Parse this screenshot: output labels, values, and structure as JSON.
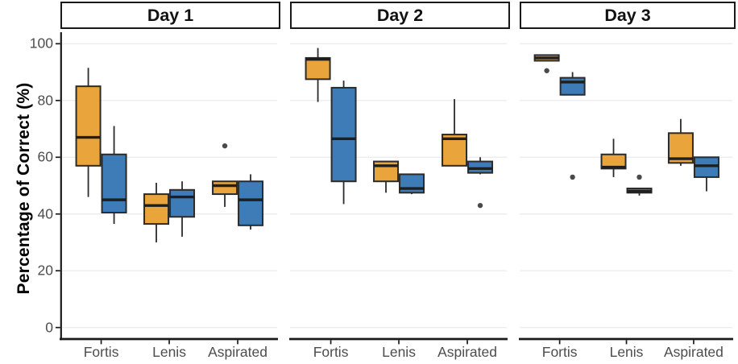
{
  "chart_data": {
    "type": "box",
    "title": "",
    "xlabel": "",
    "ylabel": "Percentage of Correct (%)",
    "ylim": [
      0,
      100
    ],
    "y_ticks": [
      0,
      20,
      40,
      60,
      80,
      100
    ],
    "grid": "horizontal-light",
    "legend_position": "none",
    "categories": [
      "Fortis",
      "Lenis",
      "Aspirated"
    ],
    "series": [
      {
        "id": "orange",
        "color": "#E9A43C"
      },
      {
        "id": "blue",
        "color": "#3E7CB7"
      }
    ],
    "style_colors": {
      "box_border": "#2b2b2b",
      "median": "#1f1f1f",
      "whisker": "#2b2b2b",
      "outlier": "#4a4a4a",
      "gridline": "#ededed",
      "axis_line": "#1a1a1a",
      "axis_text": "#4d4d4d",
      "strip_border": "#1a1a1a",
      "strip_fill": "#ffffff"
    },
    "facets": [
      {
        "label": "Day 1",
        "groups": [
          {
            "category": "Fortis",
            "series": "orange",
            "min": 46,
            "q1": 57,
            "median": 67,
            "q3": 85,
            "max": 91.5,
            "outliers": []
          },
          {
            "category": "Fortis",
            "series": "blue",
            "min": 36.5,
            "q1": 40.5,
            "median": 45,
            "q3": 61,
            "max": 71,
            "outliers": []
          },
          {
            "category": "Lenis",
            "series": "orange",
            "min": 30,
            "q1": 36.5,
            "median": 43,
            "q3": 47,
            "max": 51,
            "outliers": []
          },
          {
            "category": "Lenis",
            "series": "blue",
            "min": 32,
            "q1": 39,
            "median": 46,
            "q3": 48.5,
            "max": 51.5,
            "outliers": []
          },
          {
            "category": "Aspirated",
            "series": "orange",
            "min": 42.5,
            "q1": 47,
            "median": 50,
            "q3": 51.5,
            "max": 51.5,
            "outliers": [
              64
            ]
          },
          {
            "category": "Aspirated",
            "series": "blue",
            "min": 34.5,
            "q1": 36,
            "median": 45,
            "q3": 51.5,
            "max": 54,
            "outliers": []
          }
        ]
      },
      {
        "label": "Day 2",
        "groups": [
          {
            "category": "Fortis",
            "series": "orange",
            "min": 79.5,
            "q1": 87.5,
            "median": 94.5,
            "q3": 95,
            "max": 98.5,
            "outliers": []
          },
          {
            "category": "Fortis",
            "series": "blue",
            "min": 43.5,
            "q1": 51.5,
            "median": 66.5,
            "q3": 84.5,
            "max": 87,
            "outliers": []
          },
          {
            "category": "Lenis",
            "series": "orange",
            "min": 47.5,
            "q1": 51.5,
            "median": 57,
            "q3": 58.5,
            "max": 58.5,
            "outliers": []
          },
          {
            "category": "Lenis",
            "series": "blue",
            "min": 47,
            "q1": 47.5,
            "median": 49,
            "q3": 54,
            "max": 54,
            "outliers": []
          },
          {
            "category": "Aspirated",
            "series": "orange",
            "min": 57,
            "q1": 57,
            "median": 66.5,
            "q3": 68,
            "max": 80.5,
            "outliers": []
          },
          {
            "category": "Aspirated",
            "series": "blue",
            "min": 54,
            "q1": 54.5,
            "median": 56,
            "q3": 58.5,
            "max": 60,
            "outliers": [
              43
            ]
          }
        ]
      },
      {
        "label": "Day 3",
        "groups": [
          {
            "category": "Fortis",
            "series": "orange",
            "min": 94,
            "q1": 94,
            "median": 95,
            "q3": 96,
            "max": 96,
            "outliers": [
              90.5
            ]
          },
          {
            "category": "Fortis",
            "series": "blue",
            "min": 82,
            "q1": 82,
            "median": 86.5,
            "q3": 88,
            "max": 90,
            "outliers": [
              53
            ]
          },
          {
            "category": "Lenis",
            "series": "orange",
            "min": 53,
            "q1": 56,
            "median": 56.5,
            "q3": 61,
            "max": 66.5,
            "outliers": []
          },
          {
            "category": "Lenis",
            "series": "blue",
            "min": 46.5,
            "q1": 47.5,
            "median": 48,
            "q3": 49,
            "max": 49,
            "outliers": [
              53
            ]
          },
          {
            "category": "Aspirated",
            "series": "orange",
            "min": 57,
            "q1": 58,
            "median": 59.5,
            "q3": 68.5,
            "max": 73.5,
            "outliers": []
          },
          {
            "category": "Aspirated",
            "series": "blue",
            "min": 48,
            "q1": 53,
            "median": 57,
            "q3": 60,
            "max": 60,
            "outliers": []
          }
        ]
      }
    ]
  }
}
